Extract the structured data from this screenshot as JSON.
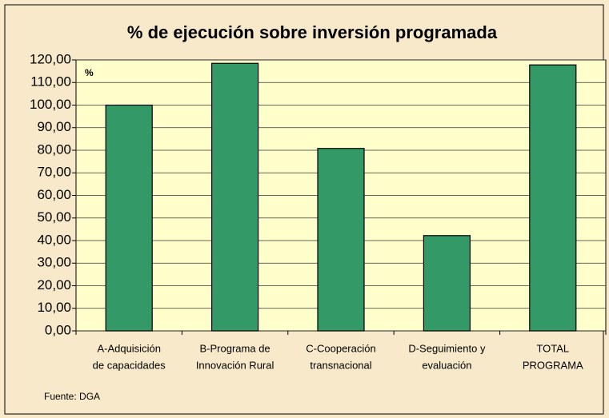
{
  "chart_data": {
    "type": "bar",
    "title": "% de ejecución sobre inversión programada",
    "y_label": "%",
    "source": "Fuente: DGA",
    "categories": [
      [
        "A-Adquisición",
        "de capacidades"
      ],
      [
        "B-Programa de",
        "Innovación Rural"
      ],
      [
        "C-Cooperación",
        "transnacional"
      ],
      [
        "D-Seguimiento y",
        "evaluación"
      ],
      [
        "TOTAL",
        "PROGRAMA"
      ]
    ],
    "values": [
      100,
      118.5,
      80.8,
      42.2,
      117.8
    ],
    "color": "#339966",
    "ylim": [
      0,
      120
    ],
    "yticks": [
      {
        "value": 0,
        "label": "0,00"
      },
      {
        "value": 10,
        "label": "10,00"
      },
      {
        "value": 20,
        "label": "20,00"
      },
      {
        "value": 30,
        "label": "30,00"
      },
      {
        "value": 40,
        "label": "40,00"
      },
      {
        "value": 50,
        "label": "50,00"
      },
      {
        "value": 60,
        "label": "60,00"
      },
      {
        "value": 70,
        "label": "70,00"
      },
      {
        "value": 80,
        "label": "80,00"
      },
      {
        "value": 90,
        "label": "90,00"
      },
      {
        "value": 100,
        "label": "100,00"
      },
      {
        "value": 110,
        "label": "110,00"
      },
      {
        "value": 120,
        "label": "120,00"
      }
    ],
    "grid": true
  }
}
